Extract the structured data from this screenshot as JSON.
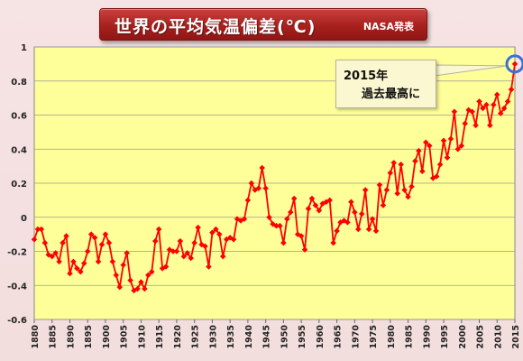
{
  "title": {
    "main": "世界の平均気温偏差(℃)",
    "source": "NASA発表"
  },
  "annotation": {
    "line1": "2015年",
    "line2": "過去最高に"
  },
  "colors": {
    "plot_bg": "#ffff99",
    "series": "#ff0000",
    "title_bg": "#b02a27",
    "highlight_ring": "#3a6fd8"
  },
  "chart_data": {
    "type": "line",
    "xlim": [
      1880,
      2015
    ],
    "ylim": [
      -0.6,
      1.0
    ],
    "xticks": [
      1880,
      1885,
      1890,
      1895,
      1900,
      1905,
      1910,
      1915,
      1920,
      1925,
      1930,
      1935,
      1940,
      1945,
      1950,
      1955,
      1960,
      1965,
      1970,
      1975,
      1980,
      1985,
      1990,
      1995,
      2000,
      2005,
      2010,
      2015
    ],
    "yticks": [
      -0.6,
      -0.4,
      -0.2,
      0,
      0.2,
      0.4,
      0.6,
      0.8,
      1
    ],
    "ytick_labels": [
      "-0.6",
      "-0.4",
      "-0.2",
      "0",
      "0.2",
      "0.4",
      "0.6",
      "0.8",
      "1"
    ],
    "grid": "horizontal",
    "highlight_year": 2015,
    "series": [
      {
        "x": [
          1880,
          1881,
          1882,
          1883,
          1884,
          1885,
          1886,
          1887,
          1888,
          1889,
          1890,
          1891,
          1892,
          1893,
          1894,
          1895,
          1896,
          1897,
          1898,
          1899,
          1900,
          1901,
          1902,
          1903,
          1904,
          1905,
          1906,
          1907,
          1908,
          1909,
          1910,
          1911,
          1912,
          1913,
          1914,
          1915,
          1916,
          1917,
          1918,
          1919,
          1920,
          1921,
          1922,
          1923,
          1924,
          1925,
          1926,
          1927,
          1928,
          1929,
          1930,
          1931,
          1932,
          1933,
          1934,
          1935,
          1936,
          1937,
          1938,
          1939,
          1940,
          1941,
          1942,
          1943,
          1944,
          1945,
          1946,
          1947,
          1948,
          1949,
          1950,
          1951,
          1952,
          1953,
          1954,
          1955,
          1956,
          1957,
          1958,
          1959,
          1960,
          1961,
          1962,
          1963,
          1964,
          1965,
          1966,
          1967,
          1968,
          1969,
          1970,
          1971,
          1972,
          1973,
          1974,
          1975,
          1976,
          1977,
          1978,
          1979,
          1980,
          1981,
          1982,
          1983,
          1984,
          1985,
          1986,
          1987,
          1988,
          1989,
          1990,
          1991,
          1992,
          1993,
          1994,
          1995,
          1996,
          1997,
          1998,
          1999,
          2000,
          2001,
          2002,
          2003,
          2004,
          2005,
          2006,
          2007,
          2008,
          2009,
          2010,
          2011,
          2012,
          2013,
          2014,
          2015
        ],
        "values": [
          -0.13,
          -0.07,
          -0.07,
          -0.15,
          -0.22,
          -0.23,
          -0.21,
          -0.26,
          -0.15,
          -0.11,
          -0.33,
          -0.26,
          -0.3,
          -0.32,
          -0.27,
          -0.2,
          -0.1,
          -0.12,
          -0.26,
          -0.16,
          -0.1,
          -0.15,
          -0.26,
          -0.34,
          -0.41,
          -0.28,
          -0.21,
          -0.37,
          -0.43,
          -0.42,
          -0.38,
          -0.42,
          -0.34,
          -0.32,
          -0.14,
          -0.07,
          -0.3,
          -0.29,
          -0.19,
          -0.2,
          -0.2,
          -0.14,
          -0.23,
          -0.21,
          -0.24,
          -0.15,
          -0.06,
          -0.16,
          -0.17,
          -0.29,
          -0.09,
          -0.07,
          -0.1,
          -0.23,
          -0.13,
          -0.12,
          -0.13,
          -0.01,
          -0.02,
          -0.01,
          0.1,
          0.2,
          0.16,
          0.17,
          0.29,
          0.17,
          0.0,
          -0.04,
          -0.05,
          -0.05,
          -0.15,
          -0.01,
          0.03,
          0.11,
          -0.1,
          -0.11,
          -0.19,
          0.05,
          0.11,
          0.07,
          0.04,
          0.08,
          0.09,
          0.1,
          -0.15,
          -0.08,
          -0.03,
          -0.02,
          -0.03,
          0.09,
          0.03,
          -0.07,
          0.02,
          0.16,
          -0.07,
          -0.01,
          -0.08,
          0.19,
          0.07,
          0.16,
          0.26,
          0.32,
          0.14,
          0.31,
          0.16,
          0.12,
          0.18,
          0.33,
          0.39,
          0.27,
          0.44,
          0.42,
          0.23,
          0.24,
          0.31,
          0.45,
          0.35,
          0.46,
          0.62,
          0.4,
          0.42,
          0.55,
          0.63,
          0.62,
          0.54,
          0.68,
          0.64,
          0.66,
          0.54,
          0.66,
          0.72,
          0.61,
          0.64,
          0.68,
          0.75,
          0.9
        ]
      }
    ]
  }
}
